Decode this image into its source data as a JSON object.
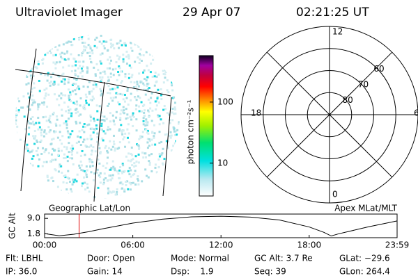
{
  "header": {
    "title": "Ultraviolet Imager",
    "date": "29 Apr 07",
    "time": "02:21:25 UT"
  },
  "colorbar": {
    "label": "photon cm⁻²s⁻¹",
    "log": true,
    "lim": [
      2.9,
      577
    ],
    "ticks": [
      10,
      100
    ]
  },
  "polar": {
    "lat_lim": [
      50,
      90
    ],
    "lat_rings": [
      60,
      70,
      80
    ],
    "mlt_labels": [
      12,
      6,
      0,
      18
    ]
  },
  "chart_data": {
    "type": "line",
    "ylabel": "GC Alt",
    "left_label": "Geographic Lat/Lon",
    "right_label": "Apex MLat/MLT",
    "x": [
      0,
      1,
      2,
      3,
      4,
      6,
      8,
      10,
      12,
      14,
      16,
      18,
      19,
      19.5,
      20,
      22,
      23.98
    ],
    "values": [
      1.9,
      0.9,
      1.6,
      2.8,
      4.2,
      6.8,
      8.6,
      9.7,
      10,
      9.6,
      8.2,
      5.0,
      2.5,
      0.8,
      1.8,
      5.0,
      7.8
    ],
    "color": "#000000",
    "marker": 2.35,
    "marker_color": "#e00000",
    "xlim": [
      0,
      23.98
    ],
    "ylim": [
      0,
      11
    ],
    "xticks": [
      {
        "value": 0,
        "label": "00:00"
      },
      {
        "value": 6,
        "label": "06:00"
      },
      {
        "value": 12,
        "label": "12:00"
      },
      {
        "value": 18,
        "label": "18:00"
      },
      {
        "value": 23.98,
        "label": "23:59"
      }
    ],
    "yticks": [
      {
        "value": 1.8,
        "label": "1.8"
      },
      {
        "value": 9.0,
        "label": "9.0"
      }
    ]
  },
  "info": {
    "rows": [
      [
        "Flt: LBHL",
        "Door: Open",
        "Mode: Normal",
        "GC Alt: 3.7 Re",
        "GLat: −29.6"
      ],
      [
        "IP: 36.0",
        "Gain: 14",
        "Dsp:    1.9",
        "Seq: 39",
        "GLon: 264.4"
      ]
    ]
  }
}
